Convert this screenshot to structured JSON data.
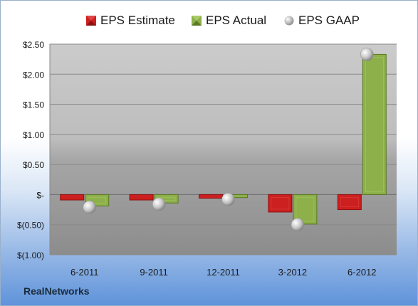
{
  "legend": {
    "estimate_label": "EPS Estimate",
    "actual_label": "EPS Actual",
    "gaap_label": "EPS GAAP"
  },
  "company": "RealNetworks",
  "colors": {
    "estimate": "#cc1f1f",
    "actual": "#8db04a",
    "gaap": "#b8b8b8",
    "plot_bg_top": "#c9c9c9",
    "plot_bg_bottom": "#8e8e8e"
  },
  "chart_data": {
    "type": "bar",
    "categories": [
      "6-2011",
      "9-2011",
      "12-2011",
      "3-2012",
      "6-2012"
    ],
    "series": [
      {
        "name": "EPS Estimate",
        "values": [
          -0.09,
          -0.09,
          -0.06,
          -0.29,
          -0.25
        ]
      },
      {
        "name": "EPS Actual",
        "values": [
          -0.19,
          -0.14,
          -0.05,
          -0.49,
          2.33
        ]
      },
      {
        "name": "EPS GAAP",
        "values": [
          -0.21,
          -0.16,
          -0.08,
          -0.5,
          2.33
        ]
      }
    ],
    "ylim": [
      -1.0,
      2.5
    ],
    "yticks": [
      2.5,
      2.0,
      1.5,
      1.0,
      0.5,
      0,
      -0.5,
      -1.0
    ],
    "ytick_labels": [
      "$2.50",
      "$2.00",
      "$1.50",
      "$1.00",
      "$0.50",
      "$-",
      "$(0.50)",
      "$(1.00)"
    ],
    "grid": true,
    "legend_position": "top"
  }
}
